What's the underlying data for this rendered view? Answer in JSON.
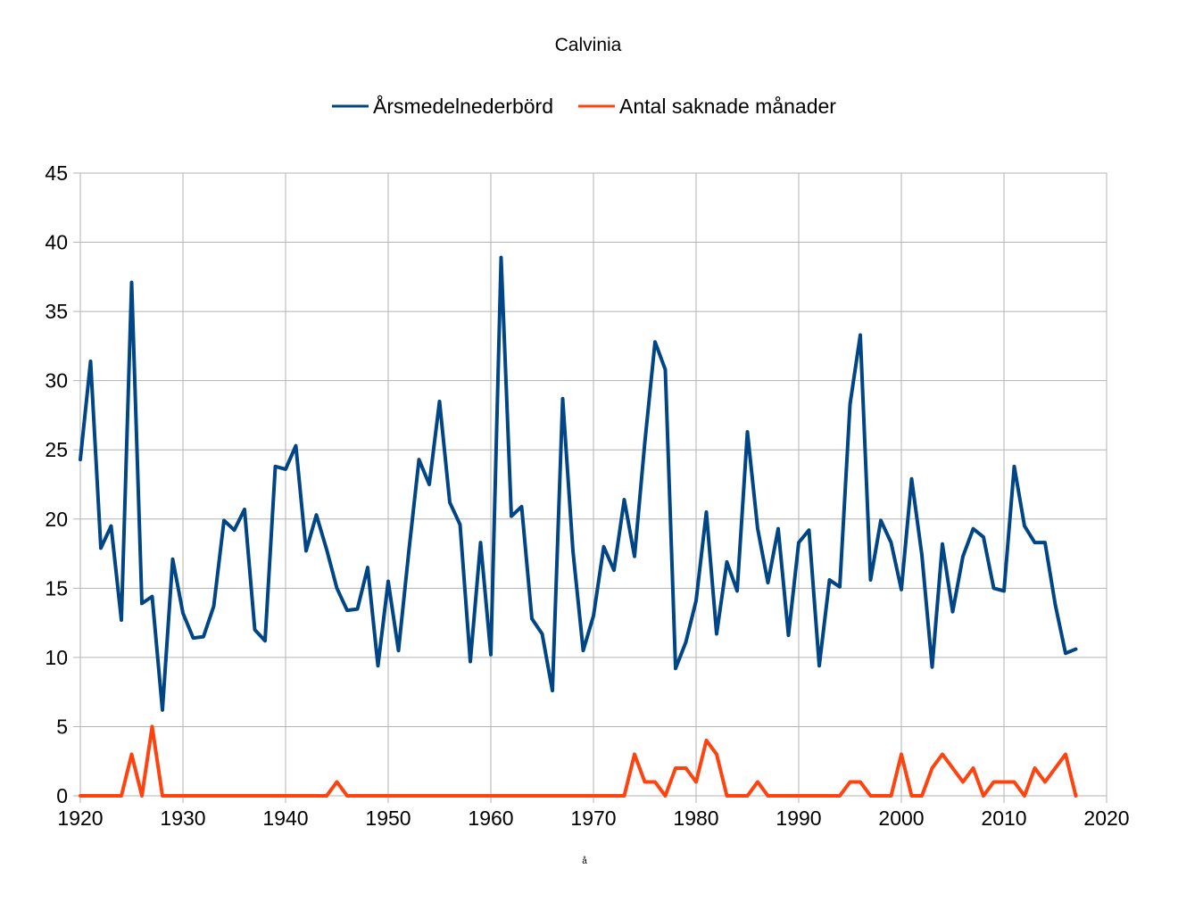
{
  "chart_data": {
    "type": "line",
    "title": "Calvinia",
    "xlabel": "å",
    "ylabel": "",
    "xlim": [
      1920,
      2020
    ],
    "ylim": [
      0,
      45
    ],
    "x_ticks": [
      1920,
      1930,
      1940,
      1950,
      1960,
      1970,
      1980,
      1990,
      2000,
      2010,
      2020
    ],
    "y_ticks": [
      0,
      5,
      10,
      15,
      20,
      25,
      30,
      35,
      40,
      45
    ],
    "grid": true,
    "legend_position": "top-center",
    "x": [
      1920,
      1921,
      1922,
      1923,
      1924,
      1925,
      1926,
      1927,
      1928,
      1929,
      1930,
      1931,
      1932,
      1933,
      1934,
      1935,
      1936,
      1937,
      1938,
      1939,
      1940,
      1941,
      1942,
      1943,
      1944,
      1945,
      1946,
      1947,
      1948,
      1949,
      1950,
      1951,
      1952,
      1953,
      1954,
      1955,
      1956,
      1957,
      1958,
      1959,
      1960,
      1961,
      1962,
      1963,
      1964,
      1965,
      1966,
      1967,
      1968,
      1969,
      1970,
      1971,
      1972,
      1973,
      1974,
      1975,
      1976,
      1977,
      1978,
      1979,
      1980,
      1981,
      1982,
      1983,
      1984,
      1985,
      1986,
      1987,
      1988,
      1989,
      1990,
      1991,
      1992,
      1993,
      1994,
      1995,
      1996,
      1997,
      1998,
      1999,
      2000,
      2001,
      2002,
      2003,
      2004,
      2005,
      2006,
      2007,
      2008,
      2009,
      2010,
      2011,
      2012,
      2013,
      2014,
      2015,
      2016,
      2017
    ],
    "series": [
      {
        "name": "Årsmedelnederbörd",
        "color": "#004586",
        "values": [
          24.3,
          31.4,
          17.9,
          19.5,
          12.7,
          37.1,
          13.9,
          14.4,
          6.2,
          17.1,
          13.2,
          11.4,
          11.5,
          13.7,
          19.9,
          19.2,
          20.7,
          12.0,
          11.2,
          23.8,
          23.6,
          25.3,
          17.7,
          20.3,
          17.8,
          15.0,
          13.4,
          13.5,
          16.5,
          9.4,
          15.5,
          10.5,
          17.6,
          24.3,
          22.5,
          28.5,
          21.2,
          19.6,
          9.7,
          18.3,
          10.2,
          38.9,
          20.2,
          20.9,
          12.8,
          11.7,
          7.6,
          28.7,
          17.7,
          10.5,
          13.0,
          18.0,
          16.3,
          21.4,
          17.3,
          25.5,
          32.8,
          30.8,
          9.2,
          11.1,
          14.1,
          20.5,
          11.7,
          16.9,
          14.8,
          26.3,
          19.3,
          15.4,
          19.3,
          11.6,
          18.3,
          19.2,
          9.4,
          15.6,
          15.1,
          28.3,
          33.3,
          15.6,
          19.9,
          18.3,
          14.9,
          22.9,
          17.4,
          9.3,
          18.2,
          13.3,
          17.3,
          19.3,
          18.7,
          15.0,
          14.8,
          23.8,
          19.5,
          18.3,
          18.3,
          13.8,
          10.3,
          10.6
        ]
      },
      {
        "name": "Antal saknade månader",
        "color": "#ff420e",
        "values": [
          0,
          0,
          0,
          0,
          0,
          3,
          0,
          5,
          0,
          0,
          0,
          0,
          0,
          0,
          0,
          0,
          0,
          0,
          0,
          0,
          0,
          0,
          0,
          0,
          0,
          1,
          0,
          0,
          0,
          0,
          0,
          0,
          0,
          0,
          0,
          0,
          0,
          0,
          0,
          0,
          0,
          0,
          0,
          0,
          0,
          0,
          0,
          0,
          0,
          0,
          0,
          0,
          0,
          0,
          3,
          1,
          1,
          0,
          2,
          2,
          1,
          4,
          3,
          0,
          0,
          0,
          1,
          0,
          0,
          0,
          0,
          0,
          0,
          0,
          0,
          1,
          1,
          0,
          0,
          0,
          3,
          0,
          0,
          2,
          3,
          2,
          1,
          2,
          0,
          1,
          1,
          1,
          0,
          2,
          1,
          2,
          3,
          0
        ]
      }
    ]
  }
}
